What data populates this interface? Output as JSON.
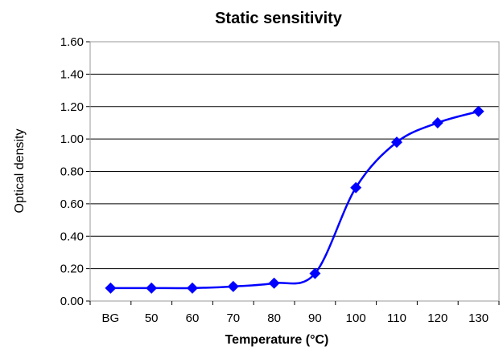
{
  "chart_data": {
    "type": "line",
    "title": "Static sensitivity",
    "xlabel": "Temperature (°C)",
    "ylabel": "Optical density",
    "categories": [
      "BG",
      "50",
      "60",
      "70",
      "80",
      "90",
      "100",
      "110",
      "120",
      "130"
    ],
    "series": [
      {
        "values": [
          0.08,
          0.08,
          0.08,
          0.09,
          0.11,
          0.17,
          0.7,
          0.98,
          1.1,
          1.17
        ]
      }
    ],
    "ylim": [
      0,
      1.6
    ],
    "yticks": [
      "0.00",
      "0.20",
      "0.40",
      "0.60",
      "0.80",
      "1.00",
      "1.20",
      "1.40",
      "1.60"
    ],
    "grid": "horizontal",
    "legend": "none",
    "colors": {
      "series": "#0000ff",
      "grid": "#000000",
      "plot_border": "#999999"
    }
  }
}
